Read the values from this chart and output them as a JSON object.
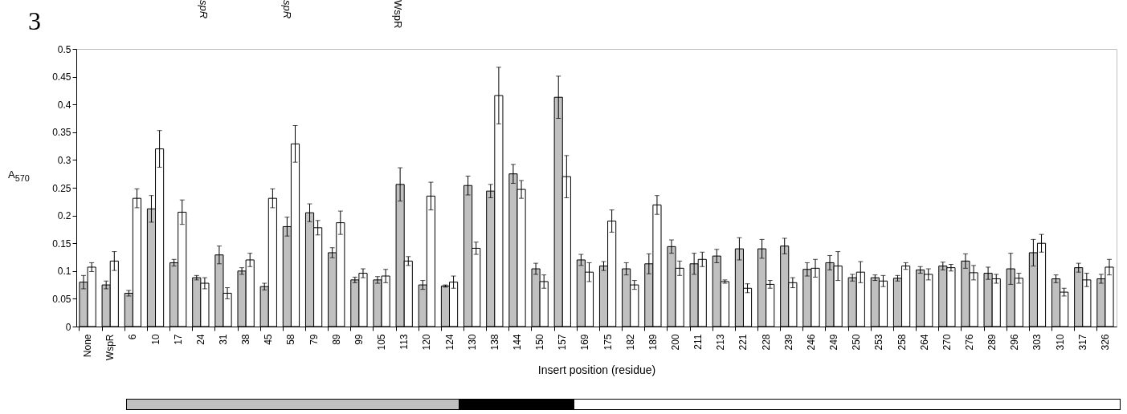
{
  "chart_data": {
    "type": "bar",
    "xlabel": "Insert position (residue)",
    "ylabel": "A$_{570}$",
    "annotations": [
      "3",
      "spR",
      "spR",
      "WspR"
    ],
    "categories": [
      "None",
      "WspR",
      "6",
      "10",
      "17",
      "24",
      "31",
      "38",
      "45",
      "58",
      "79",
      "89",
      "99",
      "105",
      "113",
      "120",
      "124",
      "130",
      "138",
      "144",
      "150",
      "157",
      "169",
      "175",
      "182",
      "189",
      "200",
      "211",
      "213",
      "221",
      "228",
      "239",
      "246",
      "249",
      "250",
      "253",
      "258",
      "264",
      "270",
      "276",
      "289",
      "296",
      "303",
      "310",
      "317",
      "326"
    ],
    "ylim": [
      0,
      0.5
    ],
    "yticks": [
      0,
      0.05,
      0.1,
      0.15,
      0.2,
      0.25,
      0.3,
      0.35,
      0.4,
      0.45,
      0.5
    ],
    "grid": false,
    "series": [
      {
        "color": "#c0c0c0",
        "values": [
          0.08,
          0.075,
          0.06,
          0.212,
          0.115,
          0.088,
          0.129,
          0.1,
          0.072,
          0.18,
          0.205,
          0.133,
          0.084,
          0.084,
          0.256,
          0.075,
          0.073,
          0.254,
          0.244,
          0.275,
          0.104,
          0.413,
          0.12,
          0.109,
          0.104,
          0.113,
          0.144,
          0.113,
          0.127,
          0.14,
          0.14,
          0.145,
          0.103,
          0.115,
          0.088,
          0.088,
          0.087,
          0.102,
          0.109,
          0.118,
          0.096,
          0.104,
          0.133,
          0.086,
          0.106,
          0.086
        ],
        "errors": [
          0.012,
          0.007,
          0.005,
          0.024,
          0.006,
          0.004,
          0.016,
          0.006,
          0.006,
          0.017,
          0.016,
          0.009,
          0.005,
          0.006,
          0.03,
          0.008,
          0.002,
          0.017,
          0.012,
          0.017,
          0.01,
          0.038,
          0.01,
          0.008,
          0.011,
          0.018,
          0.012,
          0.019,
          0.012,
          0.02,
          0.017,
          0.014,
          0.012,
          0.013,
          0.006,
          0.005,
          0.005,
          0.006,
          0.007,
          0.013,
          0.011,
          0.028,
          0.024,
          0.007,
          0.008,
          0.008
        ]
      },
      {
        "color": "#ffffff",
        "values": [
          0.107,
          0.118,
          0.231,
          0.32,
          0.206,
          0.078,
          0.06,
          0.12,
          0.231,
          0.329,
          0.178,
          0.187,
          0.096,
          0.091,
          0.118,
          0.235,
          0.08,
          0.141,
          0.416,
          0.247,
          0.081,
          0.27,
          0.098,
          0.19,
          0.075,
          0.219,
          0.105,
          0.121,
          0.081,
          0.069,
          0.076,
          0.079,
          0.105,
          0.109,
          0.098,
          0.082,
          0.109,
          0.094,
          0.106,
          0.097,
          0.086,
          0.087,
          0.15,
          0.062,
          0.084,
          0.107
        ],
        "errors": [
          0.008,
          0.017,
          0.017,
          0.033,
          0.022,
          0.01,
          0.01,
          0.012,
          0.017,
          0.033,
          0.013,
          0.021,
          0.008,
          0.012,
          0.008,
          0.025,
          0.011,
          0.011,
          0.051,
          0.016,
          0.012,
          0.038,
          0.017,
          0.02,
          0.008,
          0.017,
          0.013,
          0.013,
          0.003,
          0.008,
          0.007,
          0.009,
          0.016,
          0.026,
          0.019,
          0.01,
          0.006,
          0.01,
          0.006,
          0.013,
          0.008,
          0.009,
          0.016,
          0.007,
          0.012,
          0.014
        ]
      }
    ]
  }
}
